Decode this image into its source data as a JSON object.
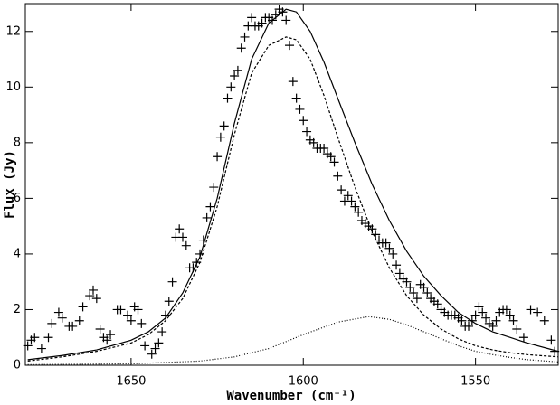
{
  "chart_data": {
    "type": "scatter",
    "xlabel": "Wavenumber (cm⁻¹)",
    "ylabel": "Flux (Jy)",
    "xlim": [
      1680.7,
      1526
    ],
    "ylim": [
      0,
      13
    ],
    "xticks": [
      1650,
      1600,
      1550
    ],
    "yticks": [
      0,
      2,
      4,
      6,
      8,
      10,
      12
    ],
    "series": [
      {
        "marker": "+",
        "color": "#000000",
        "x": [
          1680,
          1679,
          1678,
          1676,
          1674,
          1673,
          1671,
          1670,
          1668,
          1667,
          1665,
          1664,
          1662,
          1661,
          1660,
          1659,
          1658,
          1657,
          1656,
          1654,
          1653,
          1651,
          1650,
          1649,
          1648,
          1647,
          1646,
          1644,
          1643,
          1642,
          1641,
          1640,
          1639,
          1638,
          1637,
          1636,
          1635,
          1634,
          1633,
          1632,
          1631,
          1630,
          1629,
          1628,
          1627,
          1626,
          1625,
          1624,
          1623,
          1622,
          1621,
          1620,
          1619,
          1618,
          1617,
          1616,
          1615,
          1614,
          1613,
          1612,
          1611,
          1610,
          1609,
          1608,
          1607,
          1606,
          1605,
          1604,
          1603,
          1602,
          1601,
          1600,
          1599,
          1598,
          1597,
          1596,
          1595,
          1594,
          1593,
          1592,
          1591,
          1590,
          1589,
          1588,
          1587,
          1586,
          1585,
          1584,
          1583,
          1582,
          1581,
          1580,
          1579,
          1578,
          1577,
          1576,
          1575,
          1574,
          1573,
          1572,
          1571,
          1570,
          1569,
          1568,
          1567,
          1566,
          1565,
          1564,
          1563,
          1562,
          1561,
          1560,
          1559,
          1558,
          1557,
          1556,
          1555,
          1554,
          1553,
          1552,
          1551,
          1550,
          1549,
          1548,
          1547,
          1546,
          1545,
          1544,
          1543,
          1542,
          1541,
          1540,
          1539,
          1538,
          1536,
          1534,
          1532,
          1530,
          1528,
          1527
        ],
        "values": [
          0.7,
          0.9,
          1.0,
          0.6,
          1.0,
          1.5,
          1.9,
          1.7,
          1.4,
          1.4,
          1.6,
          2.1,
          2.5,
          2.7,
          2.4,
          1.3,
          1.0,
          0.9,
          1.1,
          2.0,
          2.0,
          1.8,
          1.6,
          2.1,
          2.0,
          1.5,
          0.7,
          0.4,
          0.6,
          0.8,
          1.2,
          1.8,
          2.3,
          3.0,
          4.6,
          4.9,
          4.6,
          4.3,
          3.5,
          3.5,
          3.7,
          4.0,
          4.5,
          5.3,
          5.7,
          6.4,
          7.5,
          8.2,
          8.6,
          9.6,
          10.0,
          10.4,
          10.6,
          11.4,
          11.8,
          12.2,
          12.5,
          12.2,
          12.2,
          12.3,
          12.5,
          12.5,
          12.4,
          12.6,
          12.8,
          12.7,
          12.4,
          11.5,
          10.2,
          9.6,
          9.2,
          8.8,
          8.4,
          8.1,
          8.0,
          7.8,
          7.8,
          7.8,
          7.6,
          7.5,
          7.3,
          6.8,
          6.3,
          5.9,
          6.1,
          5.9,
          5.7,
          5.5,
          5.2,
          5.1,
          5.0,
          4.9,
          4.7,
          4.5,
          4.4,
          4.4,
          4.2,
          4.0,
          3.6,
          3.3,
          3.1,
          3.0,
          2.8,
          2.6,
          2.4,
          2.9,
          2.8,
          2.6,
          2.4,
          2.3,
          2.2,
          2.0,
          1.9,
          1.8,
          1.8,
          1.8,
          1.7,
          1.6,
          1.4,
          1.4,
          1.6,
          1.8,
          2.1,
          1.9,
          1.7,
          1.5,
          1.4,
          1.6,
          1.9,
          2.0,
          2.0,
          1.8,
          1.6,
          1.3,
          1.0,
          2.0,
          1.9,
          1.6,
          0.9,
          0.5
        ]
      },
      {
        "dash": "none",
        "color": "#000000",
        "x": [
          1680,
          1670,
          1660,
          1650,
          1645,
          1640,
          1635,
          1630,
          1625,
          1620,
          1615,
          1610,
          1605,
          1602,
          1598,
          1594,
          1590,
          1585,
          1580,
          1575,
          1570,
          1565,
          1560,
          1555,
          1550,
          1545,
          1540,
          1535,
          1526
        ],
        "values": [
          0.2,
          0.35,
          0.55,
          0.9,
          1.2,
          1.7,
          2.6,
          3.9,
          6.0,
          8.7,
          11.0,
          12.3,
          12.8,
          12.7,
          12.0,
          10.9,
          9.6,
          8.0,
          6.5,
          5.2,
          4.1,
          3.2,
          2.5,
          1.9,
          1.5,
          1.2,
          1.0,
          0.8,
          0.5
        ]
      },
      {
        "dash": "3,2",
        "color": "#000000",
        "x": [
          1680,
          1670,
          1660,
          1650,
          1645,
          1640,
          1635,
          1630,
          1625,
          1620,
          1615,
          1610,
          1605,
          1602,
          1598,
          1594,
          1590,
          1585,
          1580,
          1575,
          1570,
          1565,
          1560,
          1555,
          1550,
          1545,
          1540,
          1535,
          1526
        ],
        "values": [
          0.15,
          0.3,
          0.5,
          0.8,
          1.1,
          1.6,
          2.4,
          3.7,
          5.7,
          8.3,
          10.5,
          11.5,
          11.8,
          11.7,
          11.0,
          9.7,
          8.2,
          6.4,
          4.8,
          3.5,
          2.5,
          1.8,
          1.3,
          0.95,
          0.7,
          0.55,
          0.45,
          0.38,
          0.3
        ]
      },
      {
        "dash": "1,2",
        "color": "#000000",
        "x": [
          1680,
          1650,
          1630,
          1620,
          1610,
          1600,
          1590,
          1581,
          1575,
          1570,
          1565,
          1560,
          1555,
          1550,
          1545,
          1540,
          1535,
          1526
        ],
        "values": [
          0.02,
          0.05,
          0.15,
          0.3,
          0.6,
          1.1,
          1.55,
          1.75,
          1.65,
          1.45,
          1.2,
          0.95,
          0.7,
          0.5,
          0.38,
          0.28,
          0.2,
          0.12
        ]
      }
    ]
  }
}
